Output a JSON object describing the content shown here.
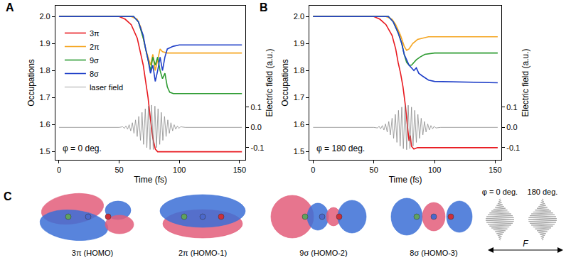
{
  "chart_data": [
    {
      "type": "line",
      "title": "A",
      "annotations": [
        "φ = 0 deg."
      ],
      "xlabel": "Time (fs)",
      "ylabel": "Occupations",
      "y2label": "Electric field (a.u.)",
      "xlim": [
        -3,
        155
      ],
      "xticks": [
        0,
        50,
        100,
        150
      ],
      "ylim": [
        1.47,
        2.04
      ],
      "yticks": [
        1.5,
        1.6,
        1.7,
        1.8,
        1.9,
        {
          "value": 2,
          "label": "2.0"
        }
      ],
      "y2lim": [
        -0.16,
        0.6
      ],
      "y2ticks": [
        -0.1,
        {
          "value": 0,
          "label": "0.0"
        },
        0.1
      ],
      "grid": false,
      "legend": "top left",
      "series": [
        {
          "name": "3π",
          "color": "#e8191f",
          "x": [
            0,
            50,
            55,
            60,
            65,
            68,
            70,
            72,
            74,
            76,
            78,
            80,
            82,
            152
          ],
          "values": [
            2,
            2,
            1.99,
            1.97,
            1.92,
            1.86,
            1.82,
            1.76,
            1.7,
            1.62,
            1.55,
            1.51,
            1.5,
            1.5
          ]
        },
        {
          "name": "2π",
          "color": "#f5a623",
          "x": [
            0,
            60,
            65,
            68,
            70,
            72,
            74,
            76,
            78,
            80,
            82,
            84,
            86,
            90,
            152
          ],
          "values": [
            2,
            2,
            1.99,
            1.96,
            1.92,
            1.88,
            1.85,
            1.82,
            1.86,
            1.8,
            1.84,
            1.88,
            1.87,
            1.865,
            1.865
          ]
        },
        {
          "name": "9σ",
          "color": "#2e9b32",
          "x": [
            0,
            62,
            66,
            70,
            72,
            74,
            76,
            78,
            80,
            82,
            84,
            86,
            88,
            90,
            92,
            95,
            152
          ],
          "values": [
            2,
            2,
            1.98,
            1.92,
            1.88,
            1.84,
            1.8,
            1.85,
            1.82,
            1.85,
            1.8,
            1.77,
            1.79,
            1.74,
            1.72,
            1.715,
            1.715
          ]
        },
        {
          "name": "8σ",
          "color": "#1f3fc8",
          "x": [
            0,
            62,
            66,
            70,
            72,
            74,
            76,
            78,
            80,
            82,
            84,
            86,
            88,
            90,
            95,
            100,
            152
          ],
          "values": [
            2,
            2,
            1.98,
            1.93,
            1.88,
            1.84,
            1.79,
            1.82,
            1.76,
            1.8,
            1.85,
            1.8,
            1.85,
            1.88,
            1.89,
            1.895,
            1.895
          ]
        },
        {
          "name": "laser field",
          "color": "#8c8c8c",
          "axis": "y2",
          "x": [
            0,
            50,
            53,
            54.3,
            55.6,
            57,
            58.3,
            59.6,
            61,
            62.3,
            63.6,
            65,
            66.3,
            67.7,
            69,
            70.3,
            71.7,
            73,
            74.3,
            75.7,
            77,
            78.3,
            79.7,
            81,
            82.3,
            83.7,
            85,
            86.3,
            87.7,
            89,
            90.4,
            91.7,
            93,
            94.4,
            95.7,
            97,
            98.4,
            99.7,
            101,
            105,
            152
          ],
          "values": [
            0,
            0,
            0.003,
            -0.005,
            0.007,
            -0.009,
            0.013,
            -0.017,
            0.023,
            -0.029,
            0.037,
            -0.045,
            0.054,
            -0.064,
            0.074,
            -0.084,
            0.092,
            -0.1,
            0.105,
            -0.109,
            0.11,
            -0.109,
            0.105,
            -0.1,
            0.092,
            -0.084,
            0.074,
            -0.064,
            0.054,
            -0.045,
            0.037,
            -0.029,
            0.023,
            -0.017,
            0.013,
            -0.009,
            0.007,
            -0.005,
            0.003,
            0,
            0
          ]
        }
      ]
    },
    {
      "type": "line",
      "title": "B",
      "annotations": [
        "φ = 180 deg."
      ],
      "xlabel": "Time (fs)",
      "ylabel": "Occupations",
      "y2label": "Electric field (a.u.)",
      "xlim": [
        -3,
        155
      ],
      "xticks": [
        0,
        50,
        100,
        150
      ],
      "ylim": [
        1.47,
        2.04
      ],
      "yticks": [
        1.5,
        1.6,
        1.7,
        1.8,
        1.9,
        {
          "value": 2,
          "label": "2.0"
        }
      ],
      "y2lim": [
        -0.16,
        0.6
      ],
      "y2ticks": [
        -0.1,
        {
          "value": 0,
          "label": "0.0"
        },
        0.1
      ],
      "grid": false,
      "series": [
        {
          "name": "3π",
          "color": "#e8191f",
          "x": [
            0,
            50,
            55,
            60,
            65,
            68,
            70,
            72,
            74,
            76,
            78,
            79,
            80,
            81,
            83,
            86,
            152
          ],
          "values": [
            2,
            2,
            1.99,
            1.97,
            1.93,
            1.88,
            1.83,
            1.79,
            1.74,
            1.67,
            1.58,
            1.54,
            1.56,
            1.52,
            1.51,
            1.515,
            1.515
          ]
        },
        {
          "name": "2π",
          "color": "#f5a623",
          "x": [
            0,
            60,
            65,
            68,
            72,
            75,
            77,
            79,
            82,
            86,
            95,
            152
          ],
          "values": [
            2,
            2,
            1.99,
            1.97,
            1.93,
            1.89,
            1.875,
            1.88,
            1.9,
            1.915,
            1.925,
            1.925
          ]
        },
        {
          "name": "9σ",
          "color": "#2e9b32",
          "x": [
            0,
            62,
            66,
            70,
            73,
            75,
            77,
            79,
            81,
            83,
            85,
            88,
            92,
            100,
            152
          ],
          "values": [
            2,
            2,
            1.98,
            1.94,
            1.9,
            1.86,
            1.83,
            1.82,
            1.82,
            1.83,
            1.84,
            1.85,
            1.86,
            1.865,
            1.865
          ]
        },
        {
          "name": "8σ",
          "color": "#1f3fc8",
          "x": [
            0,
            62,
            66,
            70,
            73,
            75,
            77,
            79,
            81,
            83,
            85,
            87,
            90,
            95,
            100,
            152
          ],
          "values": [
            2,
            2,
            1.98,
            1.94,
            1.9,
            1.86,
            1.84,
            1.82,
            1.81,
            1.8,
            1.81,
            1.79,
            1.78,
            1.765,
            1.76,
            1.755
          ]
        },
        {
          "name": "laser field",
          "color": "#8c8c8c",
          "axis": "y2",
          "x": [
            0,
            50,
            53,
            54.3,
            55.6,
            57,
            58.3,
            59.6,
            61,
            62.3,
            63.6,
            65,
            66.3,
            67.7,
            69,
            70.3,
            71.7,
            73,
            74.3,
            75.7,
            77,
            78.3,
            79.7,
            81,
            82.3,
            83.7,
            85,
            86.3,
            87.7,
            89,
            90.4,
            91.7,
            93,
            94.4,
            95.7,
            97,
            98.4,
            99.7,
            101,
            105,
            152
          ],
          "values": [
            0,
            0,
            -0.003,
            0.005,
            -0.007,
            0.009,
            -0.013,
            0.017,
            -0.023,
            0.029,
            -0.037,
            0.045,
            -0.054,
            0.064,
            -0.074,
            0.084,
            -0.092,
            0.1,
            -0.105,
            0.109,
            -0.11,
            0.109,
            -0.105,
            0.1,
            -0.092,
            0.084,
            -0.074,
            0.064,
            -0.054,
            0.045,
            -0.037,
            0.029,
            -0.023,
            0.017,
            -0.013,
            0.009,
            -0.007,
            0.005,
            -0.003,
            0,
            0
          ]
        }
      ]
    }
  ],
  "panel_c": {
    "title": "C",
    "orbitals": [
      "3π (HOMO)",
      "2π (HOMO-1)",
      "9σ (HOMO-2)",
      "8σ (HOMO-3)"
    ],
    "pulses": [
      "φ = 0 deg.",
      "180 deg."
    ],
    "field_label": "F"
  }
}
